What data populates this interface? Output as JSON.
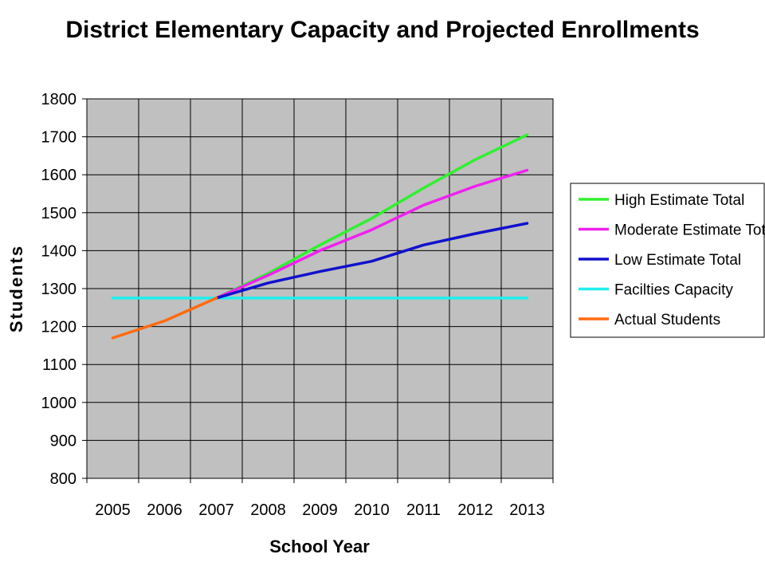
{
  "chart_data": {
    "type": "line",
    "title": "District Elementary Capacity and Projected Enrollments",
    "xlabel": "School Year",
    "ylabel": "Students",
    "categories": [
      "2005",
      "2006",
      "2007",
      "2008",
      "2009",
      "2010",
      "2011",
      "2012",
      "2013"
    ],
    "ylim": [
      800,
      1800
    ],
    "yticks": [
      800,
      900,
      1000,
      1100,
      1200,
      1300,
      1400,
      1500,
      1600,
      1700,
      1800
    ],
    "grid": true,
    "plot_background": "#c0c0c0",
    "legend_position": "right",
    "series": [
      {
        "name": "High Estimate Total",
        "color": "#33ee33",
        "values": [
          null,
          null,
          1275,
          1340,
          1415,
          1485,
          1565,
          1640,
          1705
        ]
      },
      {
        "name": "Moderate Estimate Total",
        "color": "#ee22ee",
        "values": [
          null,
          null,
          1275,
          1335,
          1400,
          1455,
          1520,
          1570,
          1612
        ]
      },
      {
        "name": "Low  Estimate Total",
        "color": "#1111cc",
        "values": [
          null,
          null,
          1275,
          1315,
          1345,
          1372,
          1415,
          1445,
          1472
        ]
      },
      {
        "name": "Facilties Capacity",
        "color": "#22eeee",
        "values": [
          1275,
          1275,
          1275,
          1275,
          1275,
          1275,
          1275,
          1275,
          1275
        ]
      },
      {
        "name": "Actual Students",
        "color": "#ff6a10",
        "values": [
          1170,
          1215,
          1275,
          null,
          null,
          null,
          null,
          null,
          null
        ]
      }
    ]
  }
}
